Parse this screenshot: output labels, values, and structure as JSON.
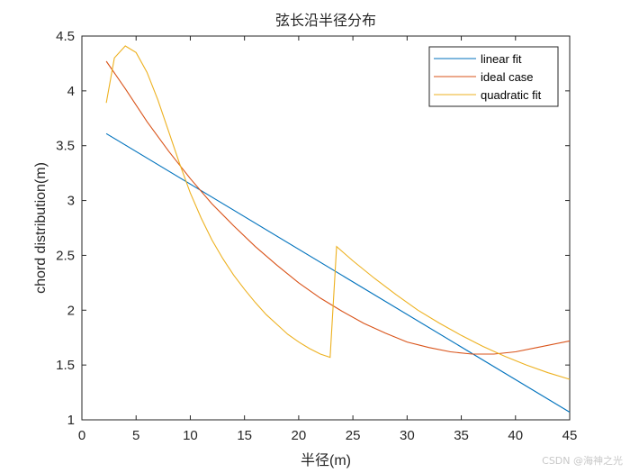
{
  "chart_data": {
    "type": "line",
    "title": "弦长沿半径分布",
    "xlabel": "半径(m)",
    "ylabel": "chord distribution(m)",
    "xlim": [
      0,
      45
    ],
    "ylim": [
      1,
      4.5
    ],
    "xticks": [
      0,
      5,
      10,
      15,
      20,
      25,
      30,
      35,
      40,
      45
    ],
    "yticks": [
      1,
      1.5,
      2,
      2.5,
      3,
      3.5,
      4,
      4.5
    ],
    "grid": false,
    "legend_position": "upper right",
    "series": [
      {
        "name": "linear fit",
        "color": "#0072BD",
        "x": [
          2.25,
          45
        ],
        "y": [
          3.61,
          1.07
        ]
      },
      {
        "name": "ideal case",
        "color": "#D95319",
        "x": [
          2.25,
          4,
          6,
          8,
          10,
          12,
          14,
          16,
          18,
          20,
          22,
          24,
          26,
          28,
          30,
          32,
          34,
          36,
          38,
          40,
          42,
          45
        ],
        "y": [
          4.27,
          4.02,
          3.72,
          3.45,
          3.2,
          2.97,
          2.77,
          2.58,
          2.41,
          2.25,
          2.11,
          1.99,
          1.88,
          1.79,
          1.71,
          1.66,
          1.62,
          1.6,
          1.6,
          1.62,
          1.66,
          1.72
        ]
      },
      {
        "name": "quadratic fit",
        "color": "#EDB120",
        "x": [
          2.25,
          3,
          4,
          5,
          6,
          7,
          8,
          9,
          10,
          11,
          12,
          13,
          14,
          15,
          16,
          17,
          18,
          19,
          20,
          21,
          22,
          22.9,
          23.5,
          25,
          27,
          29,
          31,
          33,
          35,
          37,
          39,
          41,
          43,
          45
        ],
        "y": [
          3.89,
          4.3,
          4.41,
          4.35,
          4.17,
          3.92,
          3.63,
          3.34,
          3.07,
          2.84,
          2.64,
          2.47,
          2.32,
          2.19,
          2.07,
          1.96,
          1.87,
          1.78,
          1.71,
          1.65,
          1.6,
          1.57,
          2.58,
          2.45,
          2.29,
          2.14,
          2.0,
          1.88,
          1.77,
          1.67,
          1.58,
          1.5,
          1.43,
          1.37
        ]
      }
    ]
  },
  "watermark": "CSDN @海神之光"
}
